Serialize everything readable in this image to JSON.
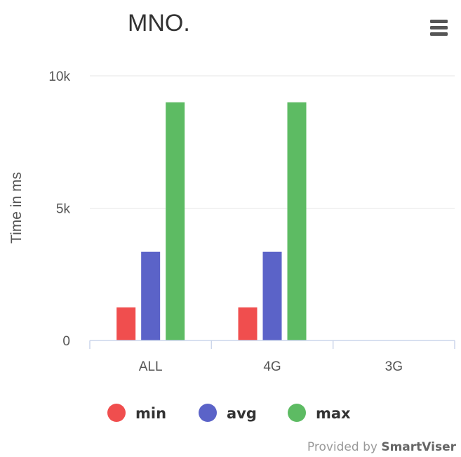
{
  "chart_data": {
    "type": "bar",
    "title": "MNO.",
    "ylabel": "Time in ms",
    "xlabel": "",
    "categories": [
      "ALL",
      "4G",
      "3G"
    ],
    "ylim": [
      0,
      10000
    ],
    "yticks": [
      0,
      5000,
      10000
    ],
    "ytick_labels": [
      "0",
      "5k",
      "10k"
    ],
    "grid": true,
    "legend_position": "bottom",
    "series": [
      {
        "name": "min",
        "color": "#f04e4e",
        "values": [
          1250,
          1250,
          0
        ]
      },
      {
        "name": "avg",
        "color": "#5b63c8",
        "values": [
          3350,
          3350,
          0
        ]
      },
      {
        "name": "max",
        "color": "#5dbb63",
        "values": [
          9000,
          9000,
          0
        ]
      }
    ]
  },
  "menu": {
    "icon": "hamburger-menu-icon"
  },
  "credits": {
    "prefix": "Provided by ",
    "brand": "SmartViser"
  }
}
